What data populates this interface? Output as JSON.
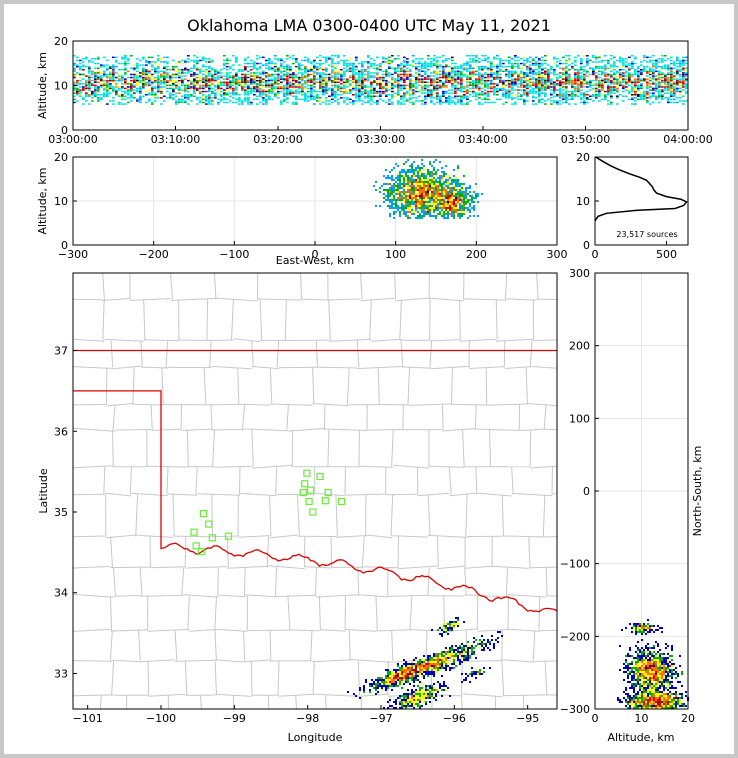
{
  "title": "Oklahoma LMA 0300-0400 UTC May 11, 2021",
  "colors": {
    "state_border": "#dd0000",
    "county_lines": "#c8c8c8",
    "stations": "#66ee33",
    "density_scale": [
      "#00e0e0",
      "#00a0ff",
      "#0000c0",
      "#00b000",
      "#ffff00",
      "#ff7000",
      "#e00000",
      "#800000",
      "#ffffff",
      "#000000"
    ]
  },
  "chart_data": [
    {
      "name": "altitude-time",
      "type": "heatmap",
      "xlabel": "",
      "ylabel": "Altitude, km",
      "x_ticks": [
        "03:00:00",
        "03:10:00",
        "03:20:00",
        "03:30:00",
        "03:40:00",
        "03:50:00",
        "04:00:00"
      ],
      "xlim": [
        "03:00:00",
        "04:00:00"
      ],
      "ylim": [
        0,
        20
      ],
      "y_ticks": [
        0,
        10,
        20
      ],
      "band_altitude_km": [
        6,
        17
      ],
      "core_altitude_km": [
        8,
        14
      ]
    },
    {
      "name": "east-west-altitude",
      "type": "heatmap",
      "xlabel": "East-West, km",
      "ylabel": "Altitude, km",
      "xlim": [
        -300,
        300
      ],
      "x_ticks": [
        -300,
        -200,
        -100,
        0,
        100,
        200,
        300
      ],
      "ylim": [
        0,
        20
      ],
      "y_ticks": [
        0,
        10,
        20
      ],
      "grid": true,
      "clusters": [
        {
          "x_center": 128,
          "x_spread": 28,
          "z_center": 12,
          "z_spread": 4
        },
        {
          "x_center": 170,
          "x_spread": 18,
          "z_center": 10,
          "z_spread": 3
        }
      ]
    },
    {
      "name": "altitude-histogram",
      "type": "line",
      "xlim": [
        0,
        650
      ],
      "x_ticks": [
        0,
        500
      ],
      "ylim": [
        0,
        20
      ],
      "y_ticks": [
        0,
        10,
        20
      ],
      "annotation": "23,517 sources",
      "points": [
        [
          0,
          5.5
        ],
        [
          20,
          6.5
        ],
        [
          80,
          7.2
        ],
        [
          300,
          7.9
        ],
        [
          560,
          8.3
        ],
        [
          620,
          9.0
        ],
        [
          640,
          9.8
        ],
        [
          600,
          10.4
        ],
        [
          500,
          11.0
        ],
        [
          430,
          11.8
        ],
        [
          410,
          12.6
        ],
        [
          400,
          13.3
        ],
        [
          380,
          14.0
        ],
        [
          360,
          14.7
        ],
        [
          310,
          15.4
        ],
        [
          240,
          16.2
        ],
        [
          170,
          17.1
        ],
        [
          110,
          18.0
        ],
        [
          60,
          18.9
        ],
        [
          25,
          19.6
        ],
        [
          5,
          20
        ]
      ]
    },
    {
      "name": "plan-view-map",
      "type": "scatter",
      "xlabel": "Longitude",
      "ylabel": "Latitude",
      "xlim": [
        -101.2,
        -94.6
      ],
      "ylim": [
        32.56,
        37.96
      ],
      "x_ticks": [
        -101,
        -100,
        -99,
        -98,
        -97,
        -96,
        -95
      ],
      "y_ticks": [
        33,
        34,
        35,
        36,
        37
      ],
      "stations": [
        [
          -99.35,
          34.85
        ],
        [
          -99.42,
          34.98
        ],
        [
          -99.55,
          34.75
        ],
        [
          -99.3,
          34.68
        ],
        [
          -99.52,
          34.58
        ],
        [
          -99.45,
          34.51
        ],
        [
          -99.08,
          34.7
        ],
        [
          -98.01,
          35.48
        ],
        [
          -97.83,
          35.44
        ],
        [
          -98.04,
          35.35
        ],
        [
          -97.96,
          35.27
        ],
        [
          -98.06,
          35.24
        ],
        [
          -97.72,
          35.24
        ],
        [
          -97.76,
          35.14
        ],
        [
          -97.98,
          35.13
        ],
        [
          -97.54,
          35.13
        ],
        [
          -97.93,
          35.0
        ]
      ],
      "clusters": [
        {
          "lon": -96.25,
          "lat": 33.13,
          "spread_lon": 0.35,
          "spread_lat": 0.06,
          "n": 700
        },
        {
          "lon": -96.62,
          "lat": 33.02,
          "spread_lon": 0.28,
          "spread_lat": 0.05,
          "n": 500
        },
        {
          "lon": -96.8,
          "lat": 32.95,
          "spread_lon": 0.12,
          "spread_lat": 0.04,
          "n": 120
        },
        {
          "lon": -96.5,
          "lat": 32.7,
          "spread_lon": 0.18,
          "spread_lat": 0.06,
          "n": 380
        },
        {
          "lon": -96.06,
          "lat": 33.58,
          "spread_lon": 0.08,
          "spread_lat": 0.03,
          "n": 80
        },
        {
          "lon": -95.7,
          "lat": 33.0,
          "spread_lon": 0.1,
          "spread_lat": 0.03,
          "n": 40
        }
      ]
    },
    {
      "name": "north-south-altitude",
      "type": "heatmap",
      "xlabel": "Altitude, km",
      "ylabel": "North-South, km",
      "xlim": [
        0,
        20
      ],
      "x_ticks": [
        0,
        10,
        20
      ],
      "ylim": [
        -300,
        300
      ],
      "y_ticks": [
        -300,
        -200,
        -100,
        0,
        100,
        200,
        300
      ],
      "grid": true,
      "clusters": [
        {
          "z_center": 12,
          "z_spread": 4,
          "y_center": -248,
          "y_spread": 14,
          "n": 1100
        },
        {
          "z_center": 13,
          "z_spread": 5,
          "y_center": -290,
          "y_spread": 7,
          "n": 900
        },
        {
          "z_center": 10,
          "z_spread": 2.5,
          "y_center": -189,
          "y_spread": 3,
          "n": 120
        }
      ]
    }
  ]
}
